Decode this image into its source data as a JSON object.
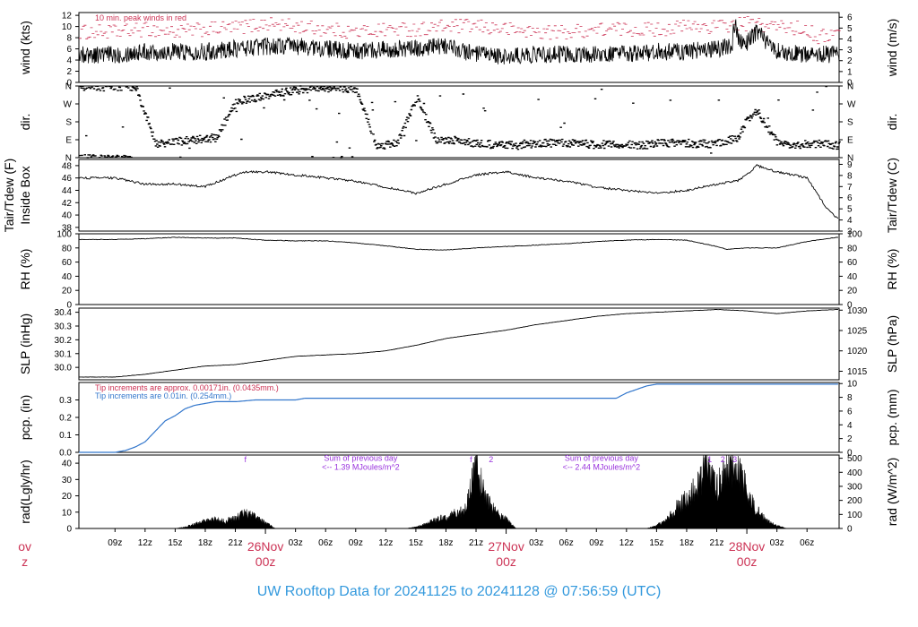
{
  "title": "UW Rooftop Data for 20241125  to  20241128 @ 07:56:59  (UTC)",
  "colors": {
    "title": "#3399dd",
    "day": "#cc3355",
    "peak": "#cc3355",
    "precip": "#3377cc",
    "annot": "#9933dd",
    "data": "#000000"
  },
  "chart_data": [
    {
      "id": "wind",
      "type": "line",
      "ylabel": "wind (kts)",
      "ylabel_right": "wind (m/s)",
      "ylim": [
        0,
        12.5
      ],
      "yticks": [
        "0",
        "2",
        "4",
        "6",
        "8",
        "10",
        "12"
      ],
      "right_ylim": [
        0,
        6.43
      ],
      "right_ticks": [
        "0",
        "1",
        "2",
        "3",
        "4",
        "5",
        "6"
      ],
      "note": "10 min. peak winds in red",
      "series": [
        {
          "name": "10 min. peak winds",
          "x": [
            0,
            3,
            6,
            9,
            12,
            15,
            18,
            21,
            24,
            27,
            30,
            33,
            36,
            39,
            42,
            45,
            48,
            51,
            54,
            57,
            60,
            63,
            66,
            69,
            70,
            72
          ],
          "y": [
            9,
            9.5,
            9,
            9.5,
            9.8,
            10.5,
            10,
            9.5,
            9,
            9.5,
            9.5,
            10,
            10,
            9.5,
            9,
            9,
            9.5,
            9.5,
            9.5,
            10,
            10,
            10.5,
            10,
            9.5,
            8,
            9
          ]
        },
        {
          "name": "wind speed",
          "x": [
            0,
            3,
            6,
            9,
            12,
            15,
            18,
            21,
            24,
            27,
            30,
            33,
            36,
            39,
            42,
            45,
            48,
            51,
            54,
            57,
            60,
            63,
            64,
            66,
            69,
            72
          ],
          "y": [
            5,
            5.5,
            5.5,
            5.5,
            6,
            6.5,
            6.5,
            6,
            5.5,
            6,
            6,
            6.5,
            5,
            4.5,
            5,
            5,
            5,
            5,
            5.5,
            5.5,
            6,
            7,
            9,
            5.5,
            5,
            5
          ]
        }
      ]
    },
    {
      "id": "dir",
      "type": "scatter",
      "ylabel": "dir.",
      "ylabel_right": "dir.",
      "ylim": [
        0,
        360
      ],
      "yticks": [
        "N",
        "E",
        "S",
        "W",
        "N"
      ],
      "right_ticks": [
        "N",
        "E",
        "S",
        "W",
        "N"
      ],
      "series": [
        {
          "name": "direction",
          "x": [
            0,
            2,
            4,
            6,
            8,
            10,
            12,
            14,
            16,
            18,
            20,
            22,
            24,
            26,
            28,
            30,
            32,
            34,
            36,
            38,
            40,
            42,
            44,
            46,
            48,
            50,
            52,
            54,
            56,
            58,
            60,
            62,
            63,
            64,
            66,
            68,
            70,
            72
          ],
          "y": [
            355,
            350,
            70,
            80,
            90,
            100,
            280,
            300,
            320,
            340,
            350,
            350,
            345,
            60,
            70,
            300,
            80,
            90,
            70,
            65,
            60,
            70,
            75,
            70,
            65,
            70,
            60,
            70,
            75,
            70,
            70,
            100,
            200,
            230,
            70,
            65,
            70,
            60
          ]
        }
      ]
    },
    {
      "id": "temp",
      "type": "line",
      "ylabel": "Tair/Tdew (F)",
      "ylabel2": "Inside Box",
      "ylabel_right": "Tair/Tdew (C)",
      "ylim": [
        37.4,
        49
      ],
      "yticks": [
        "38",
        "40",
        "42",
        "44",
        "46",
        "48"
      ],
      "right_ylim": [
        3,
        9.44
      ],
      "right_ticks": [
        "3",
        "4",
        "5",
        "6",
        "7",
        "8",
        "9"
      ],
      "series": [
        {
          "name": "Tair",
          "x": [
            0,
            3,
            6,
            9,
            12,
            13,
            15,
            18,
            21,
            24,
            27,
            30,
            33,
            36,
            39,
            42,
            45,
            48,
            51,
            54,
            57,
            60,
            62,
            63,
            64,
            66,
            69,
            71,
            72
          ],
          "y": [
            46,
            45,
            45,
            44.6,
            46.5,
            47,
            47,
            46.5,
            46,
            45.5,
            44.5,
            43.5,
            45,
            46.5,
            47,
            46,
            45.5,
            44.5,
            44,
            43.5,
            44,
            45,
            45.5,
            46.5,
            48,
            47,
            46,
            41,
            39.5
          ]
        }
      ]
    },
    {
      "id": "rh",
      "type": "line",
      "ylabel": "RH (%)",
      "ylabel_right": "RH (%)",
      "ylim": [
        0,
        100
      ],
      "yticks": [
        "0",
        "20",
        "40",
        "60",
        "80",
        "100"
      ],
      "right_ticks": [
        "0",
        "20",
        "40",
        "60",
        "80",
        "100"
      ],
      "series": [
        {
          "name": "RH",
          "x": [
            0,
            3,
            6,
            9,
            12,
            15,
            18,
            21,
            24,
            27,
            30,
            33,
            36,
            39,
            42,
            45,
            48,
            51,
            54,
            57,
            60,
            61,
            63,
            66,
            69,
            72
          ],
          "y": [
            92,
            93,
            95,
            94,
            94,
            91,
            90,
            90,
            87,
            83,
            78,
            77,
            80,
            82,
            84,
            86,
            89,
            91,
            92,
            91,
            82,
            78,
            80,
            80,
            89,
            95
          ]
        }
      ]
    },
    {
      "id": "slp",
      "type": "line",
      "ylabel": "SLP (inHg)",
      "ylabel_right": "SLP (hPa)",
      "ylim": [
        29.91,
        30.43
      ],
      "yticks": [
        "30.0",
        "30.1",
        "30.2",
        "30.3",
        "30.4"
      ],
      "right_ylim": [
        1012.9,
        1030.5
      ],
      "right_ticks": [
        "1015",
        "1020",
        "1025",
        "1030"
      ],
      "series": [
        {
          "name": "SLP",
          "x": [
            0,
            3,
            6,
            9,
            12,
            15,
            18,
            21,
            24,
            27,
            30,
            33,
            36,
            39,
            42,
            45,
            48,
            51,
            54,
            57,
            60,
            63,
            66,
            69,
            72
          ],
          "y": [
            29.93,
            29.95,
            29.98,
            30.01,
            30.02,
            30.05,
            30.08,
            30.09,
            30.1,
            30.12,
            30.16,
            30.21,
            30.24,
            30.27,
            30.31,
            30.34,
            30.37,
            30.39,
            30.4,
            30.41,
            30.42,
            30.41,
            30.39,
            30.41,
            30.42
          ]
        }
      ]
    },
    {
      "id": "pcp",
      "type": "line",
      "ylabel": "pcp. (in)",
      "ylabel_right": "pcp. (mm)",
      "ylim": [
        0,
        0.4
      ],
      "yticks": [
        "0.0",
        "0.1",
        "0.2",
        "0.3"
      ],
      "right_ylim": [
        0,
        10.16
      ],
      "right_ticks": [
        "0",
        "2",
        "4",
        "6",
        "8",
        "10"
      ],
      "note1": "Tip increments are approx. 0.00171in. (0.0435mm.)",
      "note2": "Tip increments are 0.01in. (0.254mm.)",
      "series": [
        {
          "name": "precip",
          "x": [
            0,
            1,
            2,
            3,
            4,
            5,
            6,
            7,
            8,
            9,
            10,
            12,
            14,
            16,
            18,
            19,
            20,
            22,
            24,
            26,
            28,
            30,
            32,
            34,
            36,
            38,
            40,
            42,
            44,
            46,
            48,
            50,
            51,
            52,
            53,
            54,
            56,
            60,
            64,
            68,
            72
          ],
          "y": [
            0,
            0.01,
            0.03,
            0.06,
            0.12,
            0.18,
            0.21,
            0.25,
            0.27,
            0.28,
            0.29,
            0.29,
            0.3,
            0.3,
            0.3,
            0.31,
            0.31,
            0.31,
            0.31,
            0.31,
            0.31,
            0.31,
            0.31,
            0.31,
            0.31,
            0.31,
            0.31,
            0.31,
            0.31,
            0.31,
            0.31,
            0.31,
            0.34,
            0.36,
            0.38,
            0.39,
            0.39,
            0.39,
            0.39,
            0.39,
            0.39
          ]
        }
      ]
    },
    {
      "id": "rad",
      "type": "area",
      "ylabel": "rad(Lgly/hr)",
      "ylabel_right": "rad (W/m^2)",
      "ylim": [
        0,
        45
      ],
      "yticks": [
        "0",
        "10",
        "20",
        "30",
        "40"
      ],
      "right_ylim": [
        0,
        523
      ],
      "right_ticks": [
        "0",
        "100",
        "200",
        "300",
        "400",
        "500"
      ],
      "annotations": [
        {
          "label": "f",
          "x": 13.0,
          "y": 40.5
        },
        {
          "label": "f",
          "x": 35.5,
          "y": 40.5
        },
        {
          "label": "2",
          "x": 37.5,
          "y": 40.5
        },
        {
          "label": "1",
          "x": 59.3,
          "y": 40.5
        },
        {
          "label": "2",
          "x": 60.6,
          "y": 40.5
        },
        {
          "label": "3",
          "x": 61.8,
          "y": 40.5
        },
        {
          "label": "Sum of previous day",
          "x": 24.5,
          "y": 41.5
        },
        {
          "label": "<-- 1.39 MJoules/m^2",
          "x": 24.5,
          "y": 36
        },
        {
          "label": "Sum of previous day",
          "x": 48.5,
          "y": 41.5
        },
        {
          "label": "<-- 2.44 MJoules/m^2",
          "x": 48.5,
          "y": 36
        }
      ],
      "series": [
        {
          "name": "radiation",
          "x": [
            6,
            7,
            8,
            9,
            10,
            11,
            12,
            13,
            14,
            15,
            16,
            29,
            30,
            31,
            32,
            33,
            34,
            35,
            36,
            37,
            38,
            39,
            40,
            53,
            54,
            55,
            56,
            57,
            58,
            59,
            60,
            61,
            62,
            63,
            64,
            65,
            66,
            67
          ],
          "y": [
            0,
            1,
            3,
            5,
            6,
            5,
            7,
            10,
            8,
            4,
            0,
            0,
            1,
            3,
            6,
            8,
            10,
            13,
            42,
            20,
            10,
            6,
            0,
            0,
            2,
            6,
            14,
            20,
            30,
            40,
            28,
            38,
            44,
            25,
            12,
            5,
            2,
            0
          ]
        }
      ]
    }
  ],
  "x_axis": {
    "range_hours": [
      -3.6,
      72.2
    ],
    "hour_ticks": [
      {
        "x": 0,
        "label": "09z"
      },
      {
        "x": 3,
        "label": "12z"
      },
      {
        "x": 6,
        "label": "15z"
      },
      {
        "x": 9,
        "label": "18z"
      },
      {
        "x": 12,
        "label": "21z"
      },
      {
        "x": 18,
        "label": "03z"
      },
      {
        "x": 21,
        "label": "06z"
      },
      {
        "x": 24,
        "label": "09z"
      },
      {
        "x": 27,
        "label": "12z"
      },
      {
        "x": 30,
        "label": "15z"
      },
      {
        "x": 33,
        "label": "18z"
      },
      {
        "x": 36,
        "label": "21z"
      },
      {
        "x": 42,
        "label": "03z"
      },
      {
        "x": 45,
        "label": "06z"
      },
      {
        "x": 48,
        "label": "09z"
      },
      {
        "x": 51,
        "label": "12z"
      },
      {
        "x": 54,
        "label": "15z"
      },
      {
        "x": 57,
        "label": "18z"
      },
      {
        "x": 60,
        "label": "21z"
      },
      {
        "x": 66,
        "label": "03z"
      },
      {
        "x": 69,
        "label": "06z"
      }
    ],
    "day_ticks": [
      {
        "x": -9,
        "label": "ov",
        "sub": "z"
      },
      {
        "x": 15,
        "label": "26Nov",
        "sub": "00z"
      },
      {
        "x": 39,
        "label": "27Nov",
        "sub": "00z"
      },
      {
        "x": 63,
        "label": "28Nov",
        "sub": "00z"
      }
    ]
  }
}
